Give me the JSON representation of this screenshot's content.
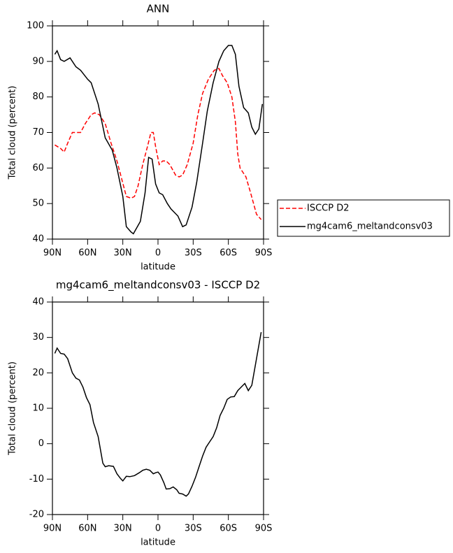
{
  "chart_data": [
    {
      "type": "line",
      "title": "ANN",
      "xlabel": "latitude",
      "ylabel": "Total cloud (percent)",
      "xlim": [
        90,
        -90
      ],
      "ylim": [
        40,
        100
      ],
      "xticks": [
        {
          "value": 90,
          "label": "90N"
        },
        {
          "value": 60,
          "label": "60N"
        },
        {
          "value": 30,
          "label": "30N"
        },
        0,
        {
          "value": -30,
          "label": "30S"
        },
        {
          "value": -60,
          "label": "60S"
        },
        {
          "value": -90,
          "label": "90S"
        }
      ],
      "yticks": [
        40,
        50,
        60,
        70,
        80,
        90,
        100
      ],
      "legend": "right",
      "series": [
        {
          "name": "ISCCP D2",
          "color": "#ff0000",
          "dash": true,
          "x": [
            88,
            83,
            80,
            77,
            73,
            70,
            66,
            62,
            57,
            54,
            50,
            45,
            40,
            35,
            31,
            27,
            23,
            20,
            17,
            13,
            9,
            6,
            4,
            2,
            -1,
            -4,
            -7,
            -10,
            -15,
            -18,
            -21,
            -25,
            -30,
            -34,
            -38,
            -43,
            -48,
            -52,
            -55,
            -59,
            -63,
            -66,
            -68,
            -70,
            -75,
            -79,
            -84,
            -88
          ],
          "values": [
            66.5,
            65.5,
            64.5,
            67,
            70,
            70,
            70,
            72.5,
            75,
            75.5,
            75,
            72.5,
            67,
            62,
            57,
            52,
            51.5,
            52,
            55,
            61,
            66,
            70,
            70,
            66,
            61,
            62,
            62,
            61,
            58,
            57.5,
            58,
            61,
            67,
            75,
            81,
            85,
            87.5,
            88,
            86,
            84,
            80,
            73,
            64,
            60,
            57.5,
            53,
            47,
            45.5
          ]
        },
        {
          "name": "mg4cam6_meltandconsv03",
          "color": "#000000",
          "dash": false,
          "x": [
            88,
            86,
            83,
            80,
            75,
            70,
            66,
            60,
            57,
            51,
            45,
            39,
            35,
            30,
            27,
            23,
            21,
            15,
            11,
            8,
            5,
            2,
            -1,
            -4,
            -8,
            -11,
            -17,
            -21,
            -24,
            -29,
            -33,
            -38,
            -42,
            -47,
            -52,
            -56,
            -60,
            -63,
            -66,
            -69,
            -73,
            -77,
            -80,
            -83,
            -86,
            -89
          ],
          "values": [
            92,
            93,
            90.5,
            90,
            91,
            88.5,
            87.5,
            85,
            84,
            78,
            68.5,
            65,
            60,
            52,
            43.5,
            42,
            41.5,
            45,
            53,
            63,
            62.5,
            55.5,
            53,
            52.5,
            50,
            48.5,
            46.5,
            43.5,
            44,
            49,
            56,
            67,
            76,
            84,
            90,
            93,
            94.5,
            94.5,
            92,
            83,
            77,
            75.5,
            71.5,
            69.5,
            71,
            78
          ]
        }
      ]
    },
    {
      "type": "line",
      "title": "mg4cam6_meltandconsv03 - ISCCP D2",
      "xlabel": "latitude",
      "ylabel": "Total cloud (percent)",
      "xlim": [
        90,
        -90
      ],
      "ylim": [
        -20,
        40
      ],
      "xticks": [
        {
          "value": 90,
          "label": "90N"
        },
        {
          "value": 60,
          "label": "60N"
        },
        {
          "value": 30,
          "label": "30N"
        },
        0,
        {
          "value": -30,
          "label": "30S"
        },
        {
          "value": -60,
          "label": "60S"
        },
        {
          "value": -90,
          "label": "90S"
        }
      ],
      "yticks": [
        -20,
        -10,
        0,
        10,
        20,
        30,
        40
      ],
      "series": [
        {
          "color": "#000000",
          "dash": false,
          "x": [
            88,
            86,
            83,
            80,
            77,
            73,
            70,
            67,
            64,
            61,
            58,
            55,
            51,
            47,
            45,
            42,
            38,
            35,
            32,
            30,
            27,
            24,
            20,
            16,
            13,
            10,
            7,
            4,
            2,
            0,
            -2,
            -5,
            -7,
            -10,
            -13,
            -16,
            -18,
            -21,
            -24,
            -26,
            -29,
            -32,
            -35,
            -38,
            -41,
            -44,
            -47,
            -50,
            -53,
            -56,
            -59,
            -62,
            -65,
            -68,
            -71,
            -74,
            -77,
            -80,
            -84,
            -88
          ],
          "values": [
            25.5,
            27,
            25.5,
            25.3,
            24,
            20,
            18.5,
            18,
            16,
            13,
            11,
            6,
            2,
            -5.5,
            -6.5,
            -6.2,
            -6.4,
            -8.5,
            -9.8,
            -10.5,
            -9.2,
            -9.3,
            -9,
            -8.2,
            -7.5,
            -7.2,
            -7.5,
            -8.5,
            -8.2,
            -8,
            -8.8,
            -11,
            -12.8,
            -12.7,
            -12.2,
            -13,
            -14,
            -14.2,
            -14.8,
            -14.2,
            -12,
            -9.5,
            -6.5,
            -3.5,
            -1,
            0.5,
            2,
            4.5,
            8,
            10,
            12.5,
            13.2,
            13.3,
            15,
            16,
            17,
            15,
            16.5,
            24,
            31.5
          ]
        }
      ]
    }
  ]
}
